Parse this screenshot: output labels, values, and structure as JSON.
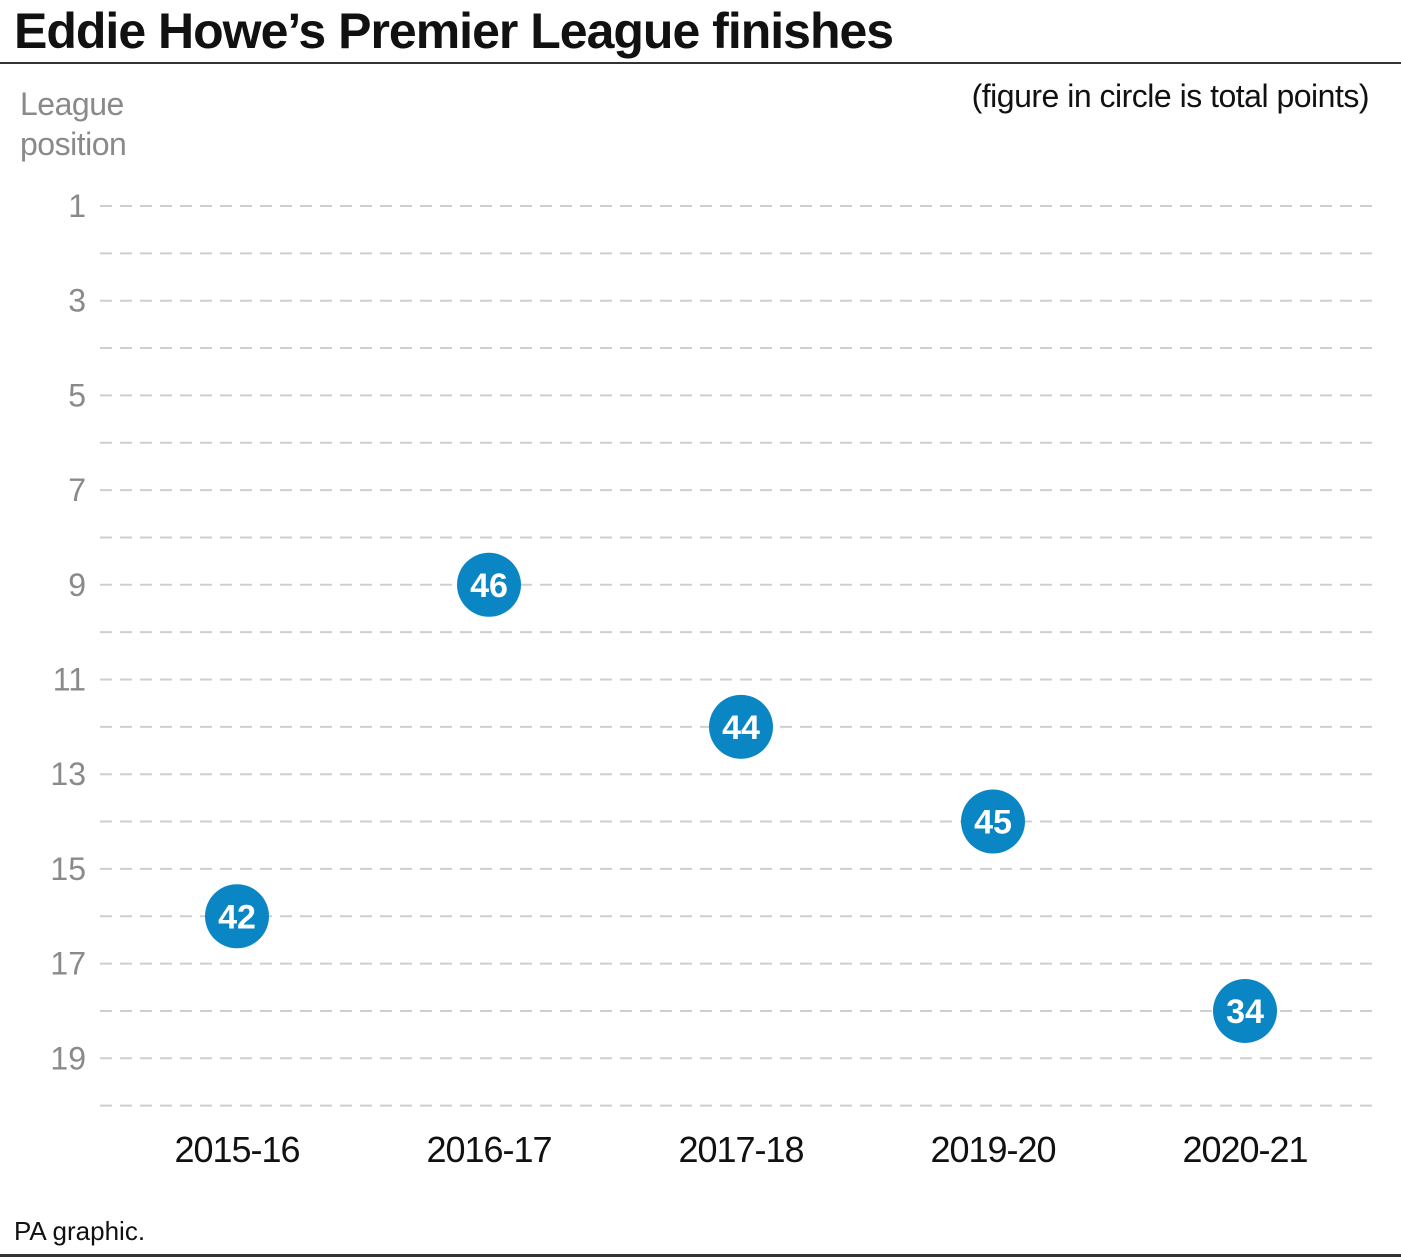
{
  "header": {
    "title": "Eddie Howe’s Premier League finishes",
    "note": "(figure in circle is total points)"
  },
  "source": "PA graphic.",
  "colors": {
    "dot": "#0a86c4",
    "grid": "#cfcfcf",
    "tick": "#8a8a8a"
  },
  "chart_data": {
    "type": "scatter",
    "ylabel": "League position",
    "ylim": [
      1,
      20
    ],
    "y_inverted": true,
    "y_ticks": [
      1,
      3,
      5,
      7,
      9,
      11,
      13,
      15,
      17,
      19
    ],
    "grid": "dashed horizontal lines at every position",
    "categories": [
      "2015-16",
      "2016-17",
      "2017-18",
      "2019-20",
      "2020-21"
    ],
    "positions": [
      16,
      9,
      12,
      14,
      18
    ],
    "points_labels": [
      42,
      46,
      44,
      45,
      34
    ]
  }
}
